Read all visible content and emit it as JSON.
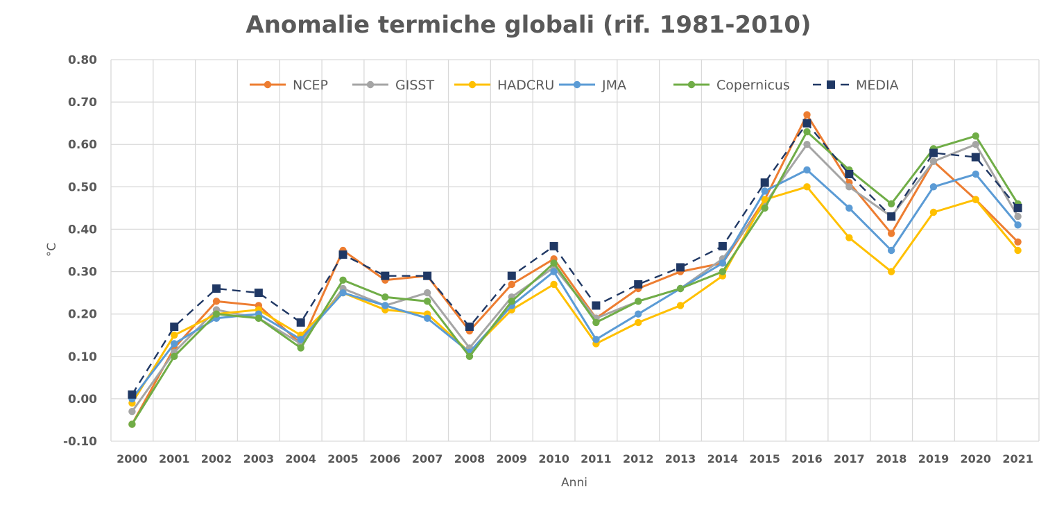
{
  "chart_data": {
    "type": "line",
    "title": "Anomalie termiche globali (rif. 1981-2010)",
    "xlabel": "Anni",
    "ylabel": "°C",
    "ylim": [
      -0.1,
      0.8
    ],
    "y_ticks": [
      "-0.10",
      "0.00",
      "0.10",
      "0.20",
      "0.30",
      "0.40",
      "0.50",
      "0.60",
      "0.70",
      "0.80"
    ],
    "grid": true,
    "legend_position": "top",
    "categories": [
      "2000",
      "2001",
      "2002",
      "2003",
      "2004",
      "2005",
      "2006",
      "2007",
      "2008",
      "2009",
      "2010",
      "2011",
      "2012",
      "2013",
      "2014",
      "2015",
      "2016",
      "2017",
      "2018",
      "2019",
      "2020",
      "2021"
    ],
    "series": [
      {
        "name": "NCEP",
        "color": "#ED7D31",
        "style": "solid",
        "marker": "circle",
        "values": [
          -0.06,
          0.12,
          0.23,
          0.22,
          0.13,
          0.35,
          0.28,
          0.29,
          0.16,
          0.27,
          0.33,
          0.19,
          0.26,
          0.3,
          0.32,
          0.47,
          0.67,
          0.51,
          0.39,
          0.56,
          0.47,
          0.37
        ]
      },
      {
        "name": "GISST",
        "color": "#A5A5A5",
        "style": "solid",
        "marker": "circle",
        "values": [
          -0.03,
          0.11,
          0.21,
          0.19,
          0.13,
          0.26,
          0.22,
          0.25,
          0.12,
          0.24,
          0.31,
          0.19,
          0.23,
          0.26,
          0.33,
          0.46,
          0.6,
          0.5,
          0.43,
          0.56,
          0.6,
          0.43
        ]
      },
      {
        "name": "HADCRU",
        "color": "#FFC000",
        "style": "solid",
        "marker": "circle",
        "values": [
          -0.01,
          0.15,
          0.2,
          0.21,
          0.15,
          0.25,
          0.21,
          0.2,
          0.11,
          0.21,
          0.27,
          0.13,
          0.18,
          0.22,
          0.29,
          0.47,
          0.5,
          0.38,
          0.3,
          0.44,
          0.47,
          0.35
        ]
      },
      {
        "name": "JMA",
        "color": "#5B9BD5",
        "style": "solid",
        "marker": "circle",
        "values": [
          0.0,
          0.13,
          0.19,
          0.2,
          0.14,
          0.25,
          0.22,
          0.19,
          0.11,
          0.22,
          0.3,
          0.14,
          0.2,
          0.26,
          0.32,
          0.49,
          0.54,
          0.45,
          0.35,
          0.5,
          0.53,
          0.41
        ]
      },
      {
        "name": "Copernicus",
        "color": "#70AD47",
        "style": "solid",
        "marker": "circle",
        "values": [
          -0.06,
          0.1,
          0.2,
          0.19,
          0.12,
          0.28,
          0.24,
          0.23,
          0.1,
          0.23,
          0.32,
          0.18,
          0.23,
          0.26,
          0.3,
          0.45,
          0.63,
          0.54,
          0.46,
          0.59,
          0.62,
          0.46
        ]
      },
      {
        "name": "MEDIA",
        "color": "#203864",
        "style": "dashed",
        "marker": "square",
        "values": [
          0.01,
          0.17,
          0.26,
          0.25,
          0.18,
          0.34,
          0.29,
          0.29,
          0.17,
          0.29,
          0.36,
          0.22,
          0.27,
          0.31,
          0.36,
          0.51,
          0.65,
          0.53,
          0.43,
          0.58,
          0.57,
          0.45
        ]
      }
    ]
  }
}
